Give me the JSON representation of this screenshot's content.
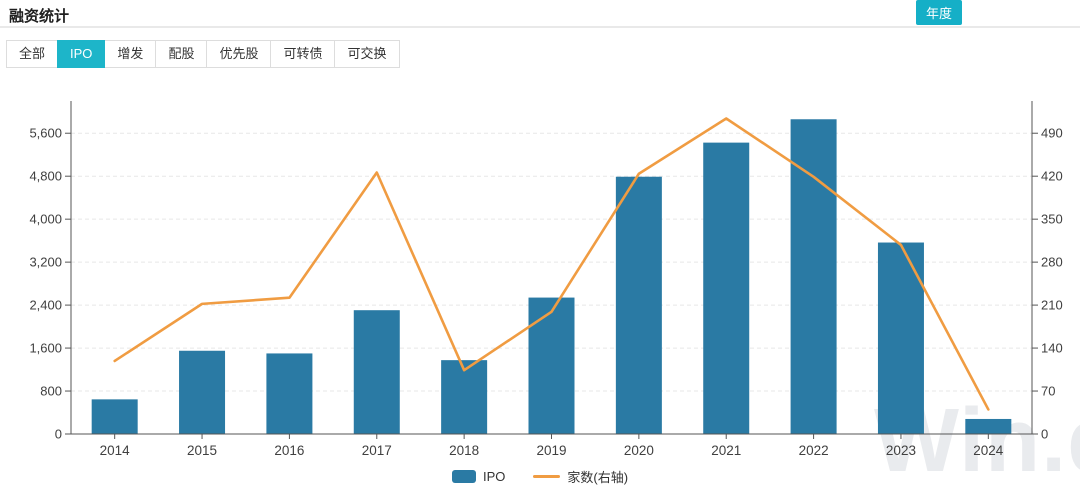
{
  "header": {
    "title": "融资统计",
    "period_button": "年度"
  },
  "tabs": {
    "items": [
      {
        "label": "全部",
        "active": false
      },
      {
        "label": "IPO",
        "active": true
      },
      {
        "label": "增发",
        "active": false
      },
      {
        "label": "配股",
        "active": false
      },
      {
        "label": "优先股",
        "active": false
      },
      {
        "label": "可转债",
        "active": false
      },
      {
        "label": "可交换",
        "active": false
      }
    ]
  },
  "watermark": "Win.d",
  "colors": {
    "accent_teal": "#15afc7",
    "tab_active": "#1db5c9",
    "bar_blue": "#2a7aa4",
    "line_orange": "#f09c42",
    "axis": "#555555",
    "tick_label": "#404040",
    "gridline": "#e7e7e7"
  },
  "chart_data": {
    "type": "bar+line",
    "title": "融资统计",
    "categories": [
      "2014",
      "2015",
      "2016",
      "2017",
      "2018",
      "2019",
      "2020",
      "2021",
      "2022",
      "2023",
      "2024"
    ],
    "series": [
      {
        "name": "IPO",
        "type": "bar",
        "axis": "left",
        "color": "#2a7aa4",
        "values": [
          645,
          1550,
          1500,
          2305,
          1375,
          2540,
          4790,
          5425,
          5860,
          3565,
          280
        ]
      },
      {
        "name": "家数(右轴)",
        "type": "line",
        "axis": "right",
        "color": "#f09c42",
        "values": [
          119,
          212,
          222,
          426,
          104,
          199,
          424,
          514,
          419,
          308,
          40
        ]
      }
    ],
    "left_axis": {
      "ticks": [
        0,
        800,
        1600,
        2400,
        3200,
        4000,
        4800,
        5600
      ],
      "max": 6200
    },
    "right_axis": {
      "ticks": [
        0,
        70,
        140,
        210,
        280,
        350,
        420,
        490
      ],
      "max": 542.5
    },
    "grid": true,
    "legend_position": "bottom"
  }
}
